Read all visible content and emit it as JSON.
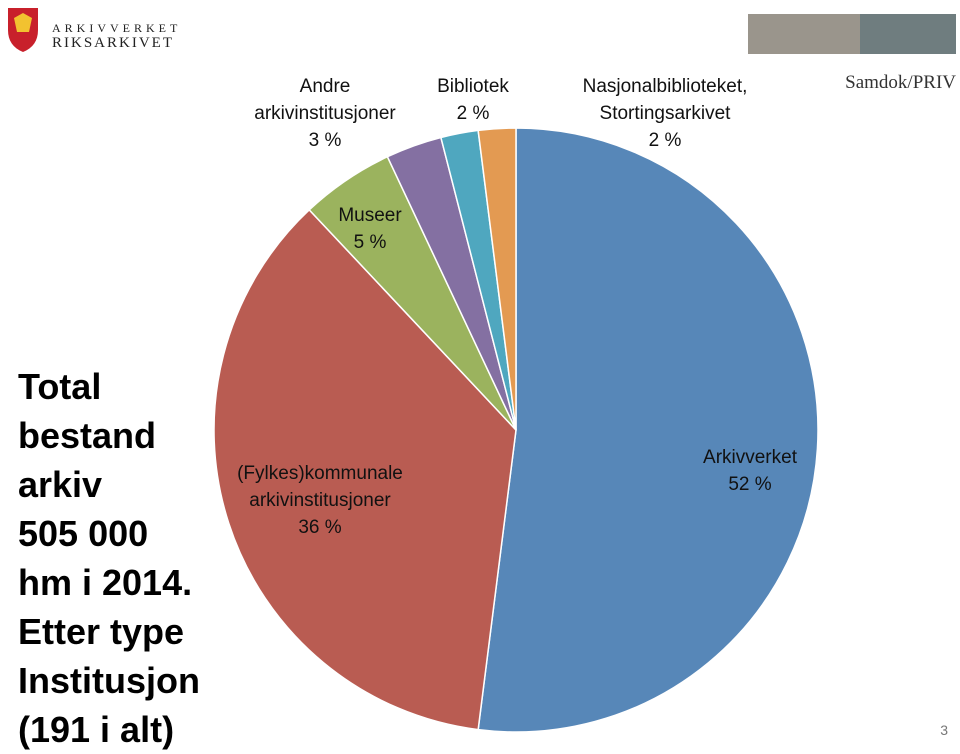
{
  "header": {
    "org_line1": "ARKIVVERKET",
    "org_line2": "RIKSARKIVET",
    "section": "Samdok/PRIV",
    "page_number": "3"
  },
  "chart_data": {
    "type": "pie",
    "title_lines": [
      "Total",
      "bestand",
      "arkiv",
      "505 000",
      "hm i 2014.",
      "Etter type",
      "Institusjon",
      "(191 i alt)"
    ],
    "categories": [
      "Arkivverket",
      "(Fylkes)kommunale arkivinstitusjoner",
      "Museer",
      "Andre arkivinstitusjoner",
      "Bibliotek",
      "Nasjonalbiblioteket, Stortingsarkivet"
    ],
    "values": [
      52,
      36,
      5,
      3,
      2,
      2
    ],
    "value_labels": [
      "52 %",
      "36 %",
      "5 %",
      "3 %",
      "2 %",
      "2 %"
    ],
    "colors": [
      "#5787b8",
      "#b95c52",
      "#9bb35e",
      "#8470a2",
      "#4fa7bf",
      "#e39a52"
    ],
    "start_angle": 0,
    "direction": "clockwise"
  }
}
